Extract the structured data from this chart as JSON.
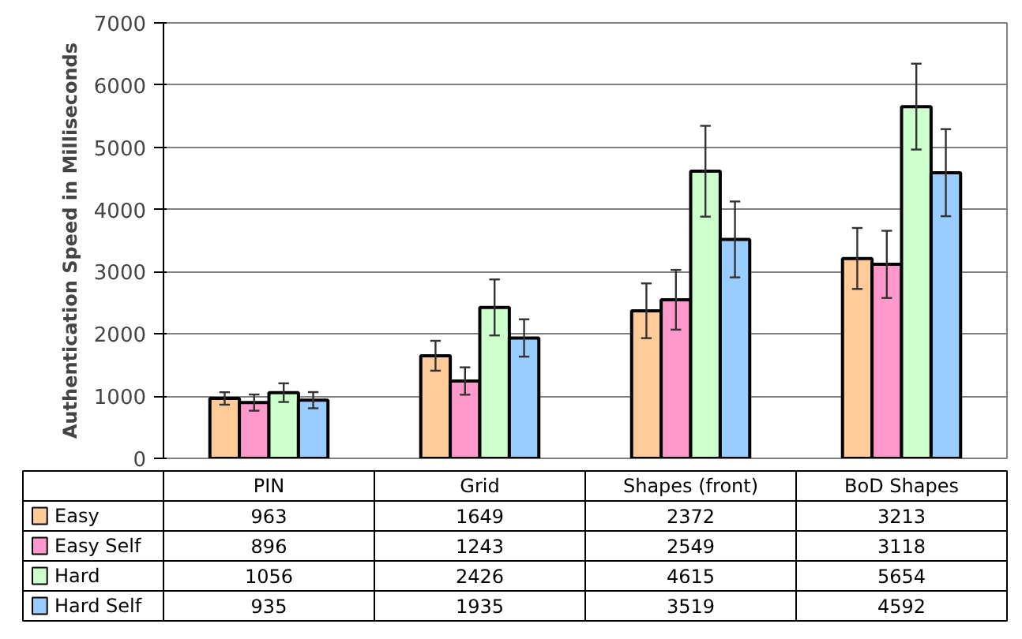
{
  "chart_data": {
    "type": "bar",
    "ylabel": "Authentication Speed in Milliseconds",
    "categories": [
      "PIN",
      "Grid",
      "Shapes (front)",
      "BoD Shapes"
    ],
    "series": [
      {
        "name": "Easy",
        "color": "#ffcc99",
        "values": [
          963,
          1649,
          2372,
          3213
        ],
        "errors": [
          100,
          240,
          440,
          490
        ]
      },
      {
        "name": "Easy Self",
        "color": "#ff99cc",
        "values": [
          896,
          1243,
          2549,
          3118
        ],
        "errors": [
          130,
          220,
          480,
          540
        ]
      },
      {
        "name": "Hard",
        "color": "#ccffcc",
        "values": [
          1056,
          2426,
          4615,
          5654
        ],
        "errors": [
          150,
          450,
          730,
          690
        ]
      },
      {
        "name": "Hard Self",
        "color": "#99ccff",
        "values": [
          935,
          1935,
          3519,
          4592
        ],
        "errors": [
          130,
          300,
          610,
          700
        ]
      }
    ],
    "ylim": [
      0,
      7000
    ],
    "yticks": [
      0,
      1000,
      2000,
      3000,
      4000,
      5000,
      6000,
      7000
    ],
    "grid": "y",
    "legend": "bottom",
    "data_labels": true
  }
}
